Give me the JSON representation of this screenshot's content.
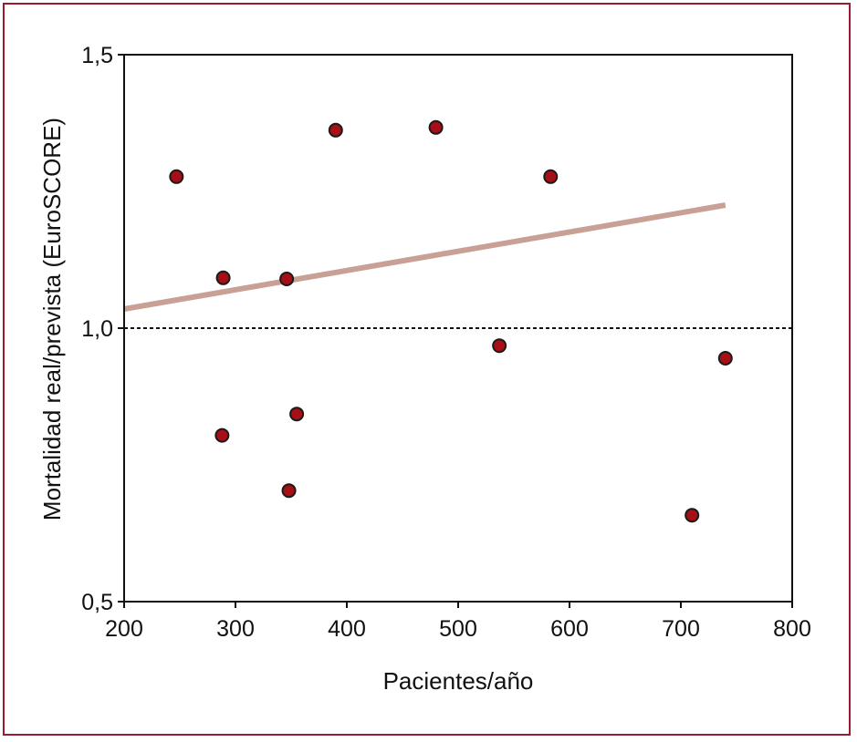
{
  "chart_data": {
    "type": "scatter",
    "xlabel": "Pacientes/año",
    "ylabel": "Mortalidad real/prevista (EuroSCORE)",
    "xlim": [
      200,
      800
    ],
    "ylim": [
      0.5,
      1.5
    ],
    "x_ticks": [
      "200",
      "300",
      "400",
      "500",
      "600",
      "700",
      "800"
    ],
    "x_tick_values": [
      200,
      300,
      400,
      500,
      600,
      700,
      800
    ],
    "y_ticks": [
      "0,5",
      "1,0",
      "1,5"
    ],
    "y_tick_values": [
      0.5,
      1.0,
      1.5
    ],
    "grid": false,
    "reference_line": {
      "y": 1.0,
      "style": "dashed"
    },
    "trend_line": {
      "x": [
        200,
        740
      ],
      "y": [
        1.035,
        1.225
      ]
    },
    "points": [
      {
        "x": 247,
        "y": 1.277
      },
      {
        "x": 289,
        "y": 1.092
      },
      {
        "x": 346,
        "y": 1.09
      },
      {
        "x": 390,
        "y": 1.362
      },
      {
        "x": 480,
        "y": 1.367
      },
      {
        "x": 583,
        "y": 1.277
      },
      {
        "x": 537,
        "y": 0.968
      },
      {
        "x": 740,
        "y": 0.945
      },
      {
        "x": 288,
        "y": 0.804
      },
      {
        "x": 355,
        "y": 0.843
      },
      {
        "x": 348,
        "y": 0.703
      },
      {
        "x": 710,
        "y": 0.658
      }
    ],
    "colors": {
      "point_fill": "#a50f15",
      "point_stroke": "#1a1a1a",
      "trend_line": "#c9a096",
      "frame_border": "#9b1b30"
    }
  }
}
